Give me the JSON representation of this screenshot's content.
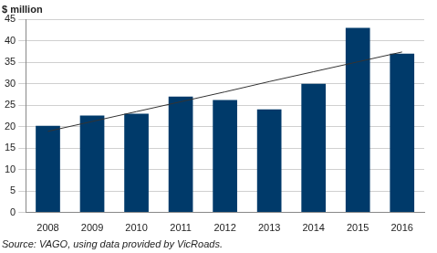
{
  "chart_data": {
    "type": "bar",
    "y_label": "$ million",
    "source": "Source: VAGO, using data provided by VicRoads.",
    "categories": [
      "2008",
      "2009",
      "2010",
      "2011",
      "2012",
      "2013",
      "2014",
      "2015",
      "2016"
    ],
    "series": [
      {
        "type": "bar",
        "color": "#003a6a",
        "values": [
          20.2,
          22.6,
          23,
          27,
          26.2,
          24,
          30,
          43,
          37
        ]
      },
      {
        "type": "line",
        "color": "#333333",
        "line_style": "solid",
        "marker": "none",
        "values": [
          18.9,
          21.2,
          23.5,
          25.8,
          28.1,
          30.5,
          32.8,
          35.1,
          37.4
        ]
      }
    ],
    "ylim": [
      0,
      45
    ],
    "yticks": [
      0,
      5,
      10,
      15,
      20,
      25,
      30,
      35,
      40,
      45
    ],
    "grid": true
  }
}
